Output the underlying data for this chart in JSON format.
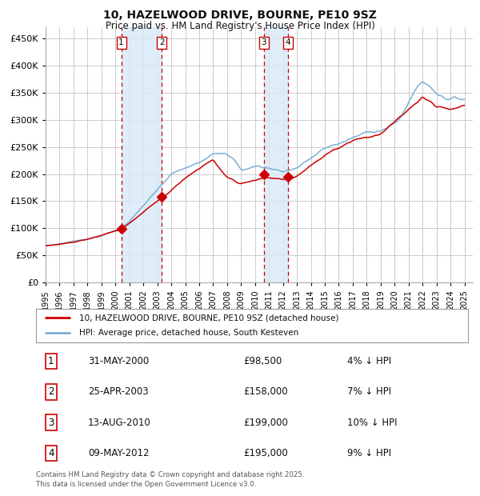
{
  "title1": "10, HAZELWOOD DRIVE, BOURNE, PE10 9SZ",
  "title2": "Price paid vs. HM Land Registry's House Price Index (HPI)",
  "legend_line1": "10, HAZELWOOD DRIVE, BOURNE, PE10 9SZ (detached house)",
  "legend_line2": "HPI: Average price, detached house, South Kesteven",
  "footer": "Contains HM Land Registry data © Crown copyright and database right 2025.\nThis data is licensed under the Open Government Licence v3.0.",
  "transactions": [
    {
      "num": 1,
      "date": "31-MAY-2000",
      "price": 98500,
      "pct": "4%",
      "year": 2000.42
    },
    {
      "num": 2,
      "date": "25-APR-2003",
      "price": 158000,
      "pct": "7%",
      "year": 2003.32
    },
    {
      "num": 3,
      "date": "13-AUG-2010",
      "price": 199000,
      "pct": "10%",
      "year": 2010.62
    },
    {
      "num": 4,
      "date": "09-MAY-2012",
      "price": 195000,
      "pct": "9%",
      "year": 2012.36
    }
  ],
  "hpi_anchors_x": [
    1995,
    1996,
    1997,
    1998,
    1999,
    2000,
    2001,
    2002,
    2003,
    2004,
    2005,
    2006,
    2007,
    2007.75,
    2008.5,
    2009,
    2009.5,
    2010,
    2010.5,
    2011,
    2011.5,
    2012,
    2012.5,
    2013,
    2014,
    2015,
    2016,
    2017,
    2018,
    2019,
    2020,
    2020.5,
    2021,
    2021.5,
    2022,
    2022.5,
    2023,
    2023.5,
    2024,
    2024.5,
    2025
  ],
  "hpi_anchors_y": [
    68000,
    72000,
    77000,
    82000,
    88000,
    98000,
    115000,
    145000,
    172000,
    200000,
    210000,
    218000,
    242000,
    248000,
    232000,
    212000,
    215000,
    220000,
    218000,
    216000,
    214000,
    212000,
    215000,
    220000,
    238000,
    255000,
    265000,
    275000,
    283000,
    292000,
    302000,
    315000,
    345000,
    368000,
    385000,
    375000,
    365000,
    360000,
    358000,
    356000,
    358000
  ],
  "prop_anchors_x": [
    1995,
    1997,
    2000.42,
    2003.32,
    2007,
    2008,
    2009,
    2010.62,
    2012.36,
    2013,
    2015,
    2017,
    2019,
    2021,
    2022,
    2023,
    2024,
    2025
  ],
  "prop_anchors_y": [
    68000,
    75000,
    98500,
    158000,
    228000,
    195000,
    185000,
    199000,
    195000,
    200000,
    240000,
    268000,
    278000,
    325000,
    350000,
    335000,
    330000,
    335000
  ],
  "hpi_color": "#7bafd4",
  "property_color": "#cc0000",
  "background_color": "#ffffff",
  "grid_color": "#cccccc",
  "shade_color": "#daeaf7",
  "dashed_color": "#cc0000",
  "ylim": [
    0,
    470000
  ],
  "yticks": [
    0,
    50000,
    100000,
    150000,
    200000,
    250000,
    300000,
    350000,
    400000,
    450000
  ],
  "year_start": 1995,
  "year_end": 2025
}
